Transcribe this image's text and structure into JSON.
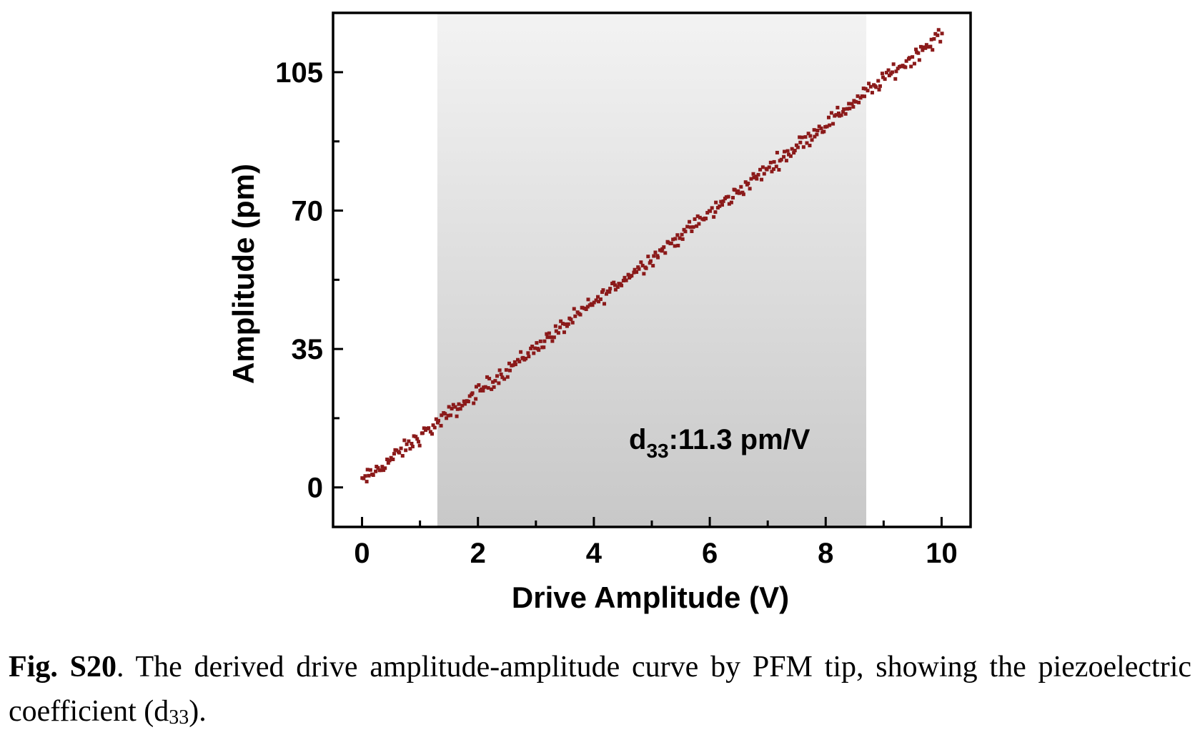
{
  "chart_data": {
    "type": "scatter",
    "xlabel": "Drive Amplitude (V)",
    "ylabel": "Amplitude (pm)",
    "xlim": [
      -0.5,
      10.5
    ],
    "ylim": [
      -10,
      120
    ],
    "xticks": [
      "0",
      "2",
      "4",
      "6",
      "8",
      "10"
    ],
    "xtick_values": [
      0,
      2,
      4,
      6,
      8,
      10
    ],
    "yticks": [
      "0",
      "35",
      "70",
      "105"
    ],
    "ytick_values": [
      0,
      35,
      70,
      105
    ],
    "minor_x_step": 1,
    "minor_y_step": 17.5,
    "shaded_region_x": [
      1.3,
      8.7
    ],
    "annotation": {
      "main": "d",
      "sub": "33",
      "rest": ":11.3 pm/V"
    },
    "marker_color": "#8b1a1a",
    "shade_color_top": "#f3f3f3",
    "shade_color_bottom": "#c8c8c8",
    "series": [
      {
        "slope": 11.3,
        "intercept": 1.5,
        "x_start": 0.0,
        "x_end": 10.0,
        "n_points": 400,
        "noise_pm": 1.2
      }
    ]
  },
  "caption": {
    "label": "Fig. S20",
    "text": ". The derived drive amplitude-amplitude curve by PFM tip, showing the piezoelectric coefficient (d",
    "sub": "33",
    "end": ")."
  }
}
